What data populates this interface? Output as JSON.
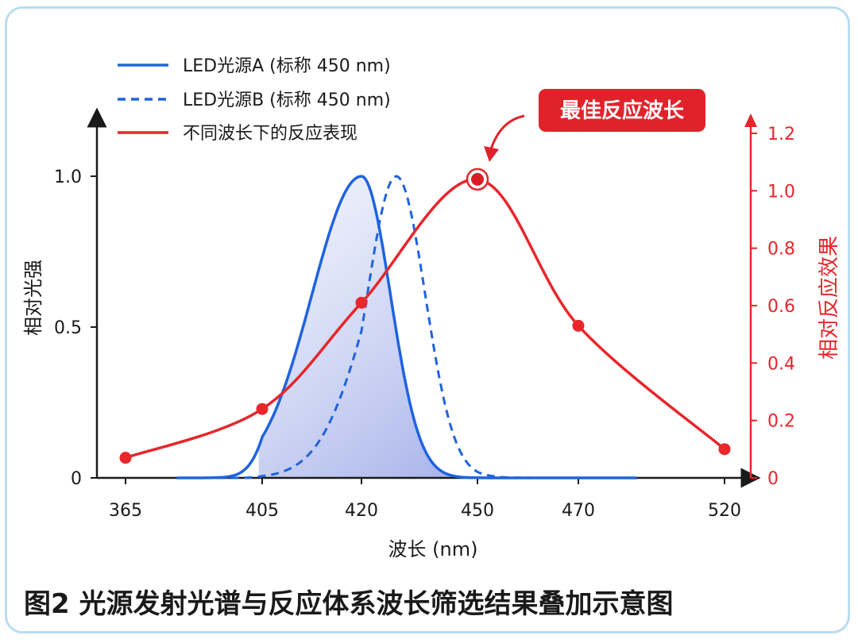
{
  "chart_data": {
    "type": "line",
    "caption": "图2  光源发射光谱与反应体系波长筛选结果叠加示意图",
    "xlabel": "波长 (nm)",
    "ylabel_left": "相对光强",
    "ylabel_right": "相对反应效果",
    "x_ticks": [
      365,
      405,
      420,
      450,
      470,
      520
    ],
    "y_left_ticks": [
      "0",
      "0.5",
      "1.0"
    ],
    "y_left_range": [
      0,
      1.0
    ],
    "y_right_ticks": [
      "0",
      "0.2",
      "0.4",
      "0.6",
      "0.8",
      "1.0",
      "1.2"
    ],
    "y_right_range": [
      0,
      1.2
    ],
    "legend": [
      {
        "label": "LED光源A (标称 450 nm)",
        "style": "solid",
        "color": "#1f63e0"
      },
      {
        "label": "LED光源B (标称 450 nm)",
        "style": "dashed",
        "color": "#1f63e0"
      },
      {
        "label": "不同波长下的反应表现",
        "style": "solid",
        "color": "#e8262b"
      }
    ],
    "callout": "最佳反应波长",
    "series": [
      {
        "name": "LED光源A (标称 450 nm)",
        "axis": "left",
        "peak_x": 420,
        "sigma": 7.5,
        "peak_y": 1.0
      },
      {
        "name": "LED光源B (标称 450 nm)",
        "axis": "left",
        "peak_x": 429,
        "sigma": 7.5,
        "peak_y": 1.0
      },
      {
        "name": "不同波长下的反应表现",
        "axis": "right",
        "points": [
          {
            "x": 365,
            "y": 0.07
          },
          {
            "x": 405,
            "y": 0.24
          },
          {
            "x": 420,
            "y": 0.61
          },
          {
            "x": 450,
            "y": 1.04
          },
          {
            "x": 470,
            "y": 0.53
          },
          {
            "x": 520,
            "y": 0.1
          }
        ]
      }
    ]
  }
}
